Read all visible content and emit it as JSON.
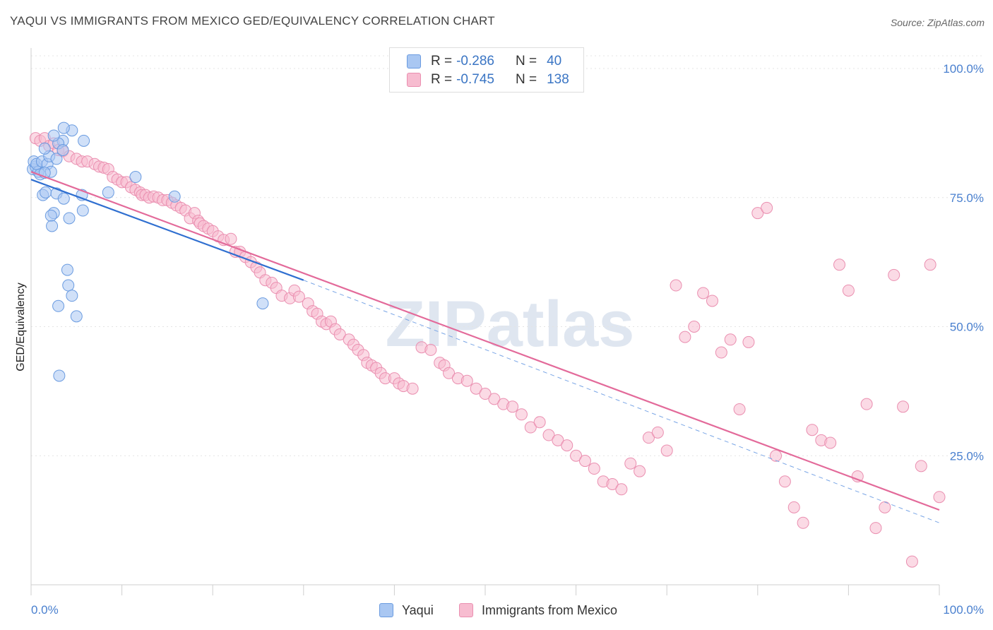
{
  "title": "YAQUI VS IMMIGRANTS FROM MEXICO GED/EQUIVALENCY CORRELATION CHART",
  "source": "Source: ZipAtlas.com",
  "watermark": "ZIPatlas",
  "stats": [
    {
      "r_label": "R = ",
      "r": "-0.286",
      "n_label": "N = ",
      "n": "40",
      "color": "#a9c7f2",
      "border": "#6a9be0"
    },
    {
      "r_label": "R = ",
      "r": "-0.745",
      "n_label": "N = ",
      "n": "138",
      "color": "#f7bcd0",
      "border": "#ea8fb0"
    }
  ],
  "legend": [
    {
      "label": "Yaqui",
      "color": "#a9c7f2",
      "border": "#6a9be0"
    },
    {
      "label": "Immigrants from Mexico",
      "color": "#f7bcd0",
      "border": "#ea8fb0"
    }
  ],
  "chart_data": {
    "type": "scatter",
    "title": "YAQUI VS IMMIGRANTS FROM MEXICO GED/EQUIVALENCY CORRELATION CHART",
    "xlabel": "",
    "ylabel": "GED/Equivalency",
    "xlim": [
      0,
      100
    ],
    "ylim": [
      0,
      100
    ],
    "x_tick_labels": [
      "0.0%",
      "100.0%"
    ],
    "y_ticks": [
      25,
      50,
      75,
      100
    ],
    "y_tick_labels": [
      "25.0%",
      "50.0%",
      "75.0%",
      "100.0%"
    ],
    "grid": true,
    "series": [
      {
        "name": "Yaqui",
        "color": "#6a9be0",
        "fill": "#a9c7f2",
        "trend": {
          "x": [
            0,
            30
          ],
          "y": [
            78.5,
            59
          ],
          "color": "#2f6fd0"
        },
        "points": [
          [
            0.2,
            80.5
          ],
          [
            0.5,
            81
          ],
          [
            0.8,
            80
          ],
          [
            1,
            79.5
          ],
          [
            0.3,
            82
          ],
          [
            0.6,
            81.5
          ],
          [
            1.2,
            82
          ],
          [
            1.8,
            81.5
          ],
          [
            2.2,
            80
          ],
          [
            1.5,
            79.8
          ],
          [
            3.5,
            86
          ],
          [
            2,
            83
          ],
          [
            2.8,
            82.5
          ],
          [
            3,
            85.5
          ],
          [
            4.5,
            88
          ],
          [
            3.5,
            84.2
          ],
          [
            1.5,
            84.5
          ],
          [
            2.5,
            87
          ],
          [
            5.8,
            86
          ],
          [
            3.6,
            88.5
          ],
          [
            1.3,
            75.5
          ],
          [
            1.6,
            76
          ],
          [
            2.8,
            75.8
          ],
          [
            3.6,
            74.8
          ],
          [
            5.6,
            75.5
          ],
          [
            5.7,
            72.5
          ],
          [
            2.5,
            72
          ],
          [
            2.2,
            71.5
          ],
          [
            2.3,
            69.5
          ],
          [
            11.5,
            79
          ],
          [
            8.5,
            76
          ],
          [
            15.8,
            75.2
          ],
          [
            4,
            61
          ],
          [
            4.1,
            58
          ],
          [
            4.5,
            56
          ],
          [
            5,
            52
          ],
          [
            3,
            54
          ],
          [
            25.5,
            54.5
          ],
          [
            3.1,
            40.5
          ],
          [
            4.2,
            71
          ]
        ]
      },
      {
        "name": "Immigrants from Mexico",
        "color": "#ea8fb0",
        "fill": "#f7bcd0",
        "trend": {
          "x": [
            0,
            100
          ],
          "y": [
            80,
            14.5
          ],
          "color": "#e36a9a"
        },
        "dashed": {
          "x": [
            30,
            100
          ],
          "y": [
            59,
            12
          ]
        },
        "points": [
          [
            0.5,
            86.5
          ],
          [
            1,
            86
          ],
          [
            1.5,
            86.5
          ],
          [
            2,
            85
          ],
          [
            2.5,
            85.5
          ],
          [
            3,
            84.2
          ],
          [
            3.5,
            84
          ],
          [
            4.2,
            83
          ],
          [
            5,
            82.5
          ],
          [
            5.6,
            82
          ],
          [
            6.2,
            82
          ],
          [
            7,
            81.5
          ],
          [
            7.5,
            81
          ],
          [
            8,
            80.8
          ],
          [
            8.5,
            80.5
          ],
          [
            9,
            79
          ],
          [
            9.5,
            78.5
          ],
          [
            10,
            78
          ],
          [
            10.5,
            78
          ],
          [
            11,
            77
          ],
          [
            11.5,
            76.5
          ],
          [
            12,
            76
          ],
          [
            12.2,
            75.5
          ],
          [
            12.6,
            75.5
          ],
          [
            13,
            75
          ],
          [
            13.5,
            75.2
          ],
          [
            14,
            75
          ],
          [
            14.5,
            74.5
          ],
          [
            15,
            74.5
          ],
          [
            15.5,
            74
          ],
          [
            16,
            73.5
          ],
          [
            16.5,
            73
          ],
          [
            17,
            72.5
          ],
          [
            17.5,
            71
          ],
          [
            18,
            72
          ],
          [
            18.4,
            70.5
          ],
          [
            18.6,
            70
          ],
          [
            19,
            69.5
          ],
          [
            19.5,
            69
          ],
          [
            20,
            68.5
          ],
          [
            20.6,
            67.5
          ],
          [
            21.2,
            66.8
          ],
          [
            22,
            67
          ],
          [
            22.5,
            64.5
          ],
          [
            23,
            64.5
          ],
          [
            23.6,
            63.5
          ],
          [
            24.2,
            62.5
          ],
          [
            24.8,
            61.5
          ],
          [
            25.2,
            60.5
          ],
          [
            25.8,
            59
          ],
          [
            26.5,
            58.5
          ],
          [
            27,
            57.5
          ],
          [
            27.6,
            56
          ],
          [
            28.5,
            55.5
          ],
          [
            29,
            57
          ],
          [
            29.5,
            55.8
          ],
          [
            30.5,
            54.5
          ],
          [
            31,
            53
          ],
          [
            31.5,
            52.5
          ],
          [
            32,
            51
          ],
          [
            32.5,
            50.5
          ],
          [
            33,
            51
          ],
          [
            33.5,
            49.5
          ],
          [
            34,
            48.5
          ],
          [
            35,
            47.5
          ],
          [
            35.5,
            46.5
          ],
          [
            36,
            45.5
          ],
          [
            36.6,
            44.5
          ],
          [
            37,
            43
          ],
          [
            37.5,
            42.5
          ],
          [
            38,
            42
          ],
          [
            38.5,
            41
          ],
          [
            39,
            40
          ],
          [
            40,
            40
          ],
          [
            40.5,
            39
          ],
          [
            41,
            38.5
          ],
          [
            42,
            38
          ],
          [
            43,
            46
          ],
          [
            44,
            45.5
          ],
          [
            45,
            43
          ],
          [
            45.5,
            42.5
          ],
          [
            46,
            41
          ],
          [
            47,
            40
          ],
          [
            48,
            39.5
          ],
          [
            49,
            38
          ],
          [
            50,
            37
          ],
          [
            51,
            36
          ],
          [
            52,
            35
          ],
          [
            53,
            34.5
          ],
          [
            54,
            33
          ],
          [
            55,
            30.5
          ],
          [
            56,
            31.5
          ],
          [
            57,
            29
          ],
          [
            58,
            28
          ],
          [
            59,
            27
          ],
          [
            60,
            25
          ],
          [
            61,
            24
          ],
          [
            62,
            22.5
          ],
          [
            63,
            20
          ],
          [
            64,
            19.5
          ],
          [
            65,
            18.5
          ],
          [
            66,
            23.5
          ],
          [
            67,
            22
          ],
          [
            68,
            28.5
          ],
          [
            69,
            29.5
          ],
          [
            70,
            26
          ],
          [
            71,
            58
          ],
          [
            72,
            48
          ],
          [
            73,
            50
          ],
          [
            74,
            56.5
          ],
          [
            75,
            55
          ],
          [
            76,
            45
          ],
          [
            77,
            47.5
          ],
          [
            78,
            34
          ],
          [
            79,
            47
          ],
          [
            80,
            72
          ],
          [
            81,
            73
          ],
          [
            82,
            25
          ],
          [
            83,
            20
          ],
          [
            84,
            15
          ],
          [
            85,
            12
          ],
          [
            86,
            30
          ],
          [
            87,
            28
          ],
          [
            88,
            27.5
          ],
          [
            89,
            62
          ],
          [
            90,
            57
          ],
          [
            91,
            21
          ],
          [
            92,
            35
          ],
          [
            93,
            11
          ],
          [
            94,
            15
          ],
          [
            95,
            60
          ],
          [
            96,
            34.5
          ],
          [
            97,
            4.5
          ],
          [
            98,
            23
          ],
          [
            99,
            62
          ],
          [
            100,
            17
          ]
        ]
      }
    ]
  }
}
